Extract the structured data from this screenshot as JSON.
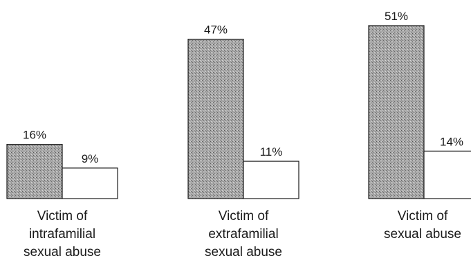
{
  "chart_data": {
    "type": "bar",
    "categories": [
      [
        "Victim of",
        "intrafamilial",
        "sexual abuse"
      ],
      [
        "Victim of",
        "extrafamilial",
        "sexual abuse"
      ],
      [
        "Victim of",
        "sexual abuse"
      ]
    ],
    "series": [
      {
        "values": [
          16,
          47,
          51
        ],
        "color": "#9a9a9a",
        "pattern": "stippled"
      },
      {
        "values": [
          9,
          11,
          14
        ],
        "color": "#ffffff",
        "pattern": "none"
      }
    ],
    "value_suffix": "%",
    "title": "",
    "xlabel": "",
    "ylabel": "",
    "ylim": [
      0,
      51
    ],
    "grid": false,
    "legend": "none"
  }
}
